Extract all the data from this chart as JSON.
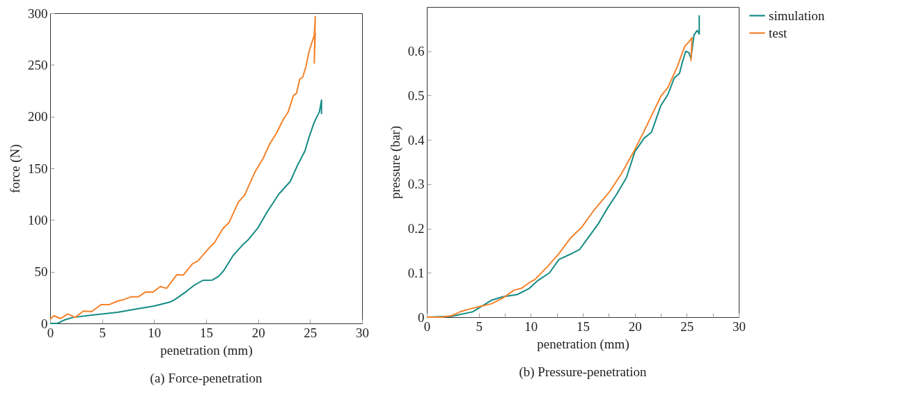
{
  "chart_data": [
    {
      "type": "line",
      "title": "(a) Force-penetration",
      "xlabel": "penetration (mm)",
      "ylabel": "force (N)",
      "xlim": [
        0,
        30
      ],
      "ylim": [
        0,
        300
      ],
      "xticks": [
        0,
        5,
        10,
        15,
        20,
        25,
        30
      ],
      "yticks": [
        0,
        50,
        100,
        150,
        200,
        250,
        300
      ],
      "grid": false,
      "legend": false,
      "series": [
        {
          "color": "#138b84",
          "x": [
            0,
            0.7,
            1.4,
            2.2,
            4.2,
            6.5,
            8.7,
            10.0,
            11.6,
            12.0,
            13.1,
            13.8,
            14.7,
            15.6,
            16.2,
            16.7,
            17.6,
            18.5,
            19.1,
            20.0,
            20.9,
            22.0,
            23.1,
            23.8,
            24.5,
            24.9,
            25.4,
            25.9,
            26.1,
            26.1
          ],
          "values": [
            0,
            0,
            3.4,
            5.8,
            8.3,
            10.8,
            14.6,
            16.8,
            20.9,
            23.1,
            30.9,
            36.5,
            41.7,
            41.9,
            45.5,
            51.1,
            65.7,
            75.8,
            81.4,
            92.6,
            108.3,
            125.1,
            137.4,
            153.1,
            166.6,
            180,
            194.6,
            204.7,
            215.9,
            202.5
          ]
        },
        {
          "color": "#f5822a",
          "x": [
            0,
            0.36,
            1.0,
            1.7,
            2.4,
            3.2,
            4.0,
            4.9,
            5.7,
            6.5,
            7.1,
            7.8,
            8.5,
            9.2,
            9.9,
            10.6,
            11.2,
            12.2,
            12.8,
            13.7,
            14.2,
            15.4,
            15.8,
            16.6,
            17.2,
            18.1,
            18.7,
            19.7,
            20.5,
            21.1,
            21.8,
            22.4,
            22.9,
            23.4,
            23.7,
            24.0,
            24.3,
            24.6,
            24.9,
            25.4,
            25.5,
            25.4,
            25.5
          ],
          "values": [
            4,
            7.4,
            4.7,
            9.2,
            5.8,
            11.9,
            11.4,
            18.2,
            18.2,
            21.7,
            23.1,
            25.8,
            25.8,
            30.5,
            30.3,
            35.7,
            33.9,
            47.3,
            46.6,
            57.8,
            60.3,
            74.2,
            78,
            91.5,
            97.5,
            117.3,
            124,
            146.4,
            159.9,
            173.3,
            184.5,
            196.9,
            204.7,
            220.4,
            222.6,
            236.1,
            238.3,
            248.4,
            263,
            278.7,
            296.6,
            251.8,
            280.9
          ]
        }
      ]
    },
    {
      "type": "line",
      "title": "(b) Pressure-penetration",
      "xlabel": "penetration (mm)",
      "ylabel": "pressure (bar)",
      "xlim": [
        0,
        30
      ],
      "ylim": [
        0,
        0.7
      ],
      "xticks": [
        0,
        {
          "value": 2.5,
          "label": null
        },
        5,
        {
          "value": 7.5,
          "label": null
        },
        10,
        {
          "value": 12.5,
          "label": null
        },
        15,
        {
          "value": 17.5,
          "label": null
        },
        20,
        {
          "value": 22.5,
          "label": null
        },
        25,
        {
          "value": 27.5,
          "label": null
        },
        30
      ],
      "yticks": [
        0,
        0.1,
        0.2,
        0.3,
        0.4,
        0.5,
        0.6
      ],
      "grid": false,
      "legend": "right",
      "series": [
        {
          "name": "simulation",
          "color": "#138b84",
          "x": [
            0,
            2.4,
            4.4,
            5.3,
            6.2,
            7.3,
            8.7,
            9.8,
            10.7,
            11.8,
            12.7,
            13.8,
            14.7,
            15.6,
            16.5,
            17.4,
            18.3,
            19.2,
            20.0,
            20.9,
            21.6,
            22.5,
            23.2,
            23.8,
            24.3,
            24.6,
            24.9,
            25.2,
            25.4,
            25.7,
            26.0,
            26.2,
            26.2
          ],
          "values": [
            0,
            0.002,
            0.012,
            0.025,
            0.038,
            0.046,
            0.051,
            0.064,
            0.083,
            0.1,
            0.13,
            0.142,
            0.153,
            0.182,
            0.211,
            0.247,
            0.279,
            0.315,
            0.373,
            0.404,
            0.417,
            0.477,
            0.503,
            0.54,
            0.55,
            0.577,
            0.6,
            0.597,
            0.584,
            0.637,
            0.647,
            0.639,
            0.681
          ]
        },
        {
          "name": "test",
          "color": "#f5822a",
          "x": [
            0,
            1.5,
            2.5,
            3.3,
            4.2,
            5.1,
            6.2,
            7.3,
            8.4,
            9.1,
            9.8,
            10.4,
            11.6,
            12.7,
            13.8,
            14.9,
            16.0,
            17.6,
            18.7,
            20.0,
            20.9,
            21.8,
            22.5,
            23.2,
            24.1,
            24.8,
            25.2,
            25.5,
            25.4,
            25.5
          ],
          "values": [
            0,
            0,
            0.004,
            0.013,
            0.019,
            0.024,
            0.03,
            0.043,
            0.061,
            0.065,
            0.077,
            0.085,
            0.114,
            0.143,
            0.178,
            0.203,
            0.239,
            0.284,
            0.323,
            0.378,
            0.42,
            0.464,
            0.498,
            0.519,
            0.566,
            0.611,
            0.621,
            0.631,
            0.579,
            0.616
          ]
        }
      ]
    }
  ]
}
